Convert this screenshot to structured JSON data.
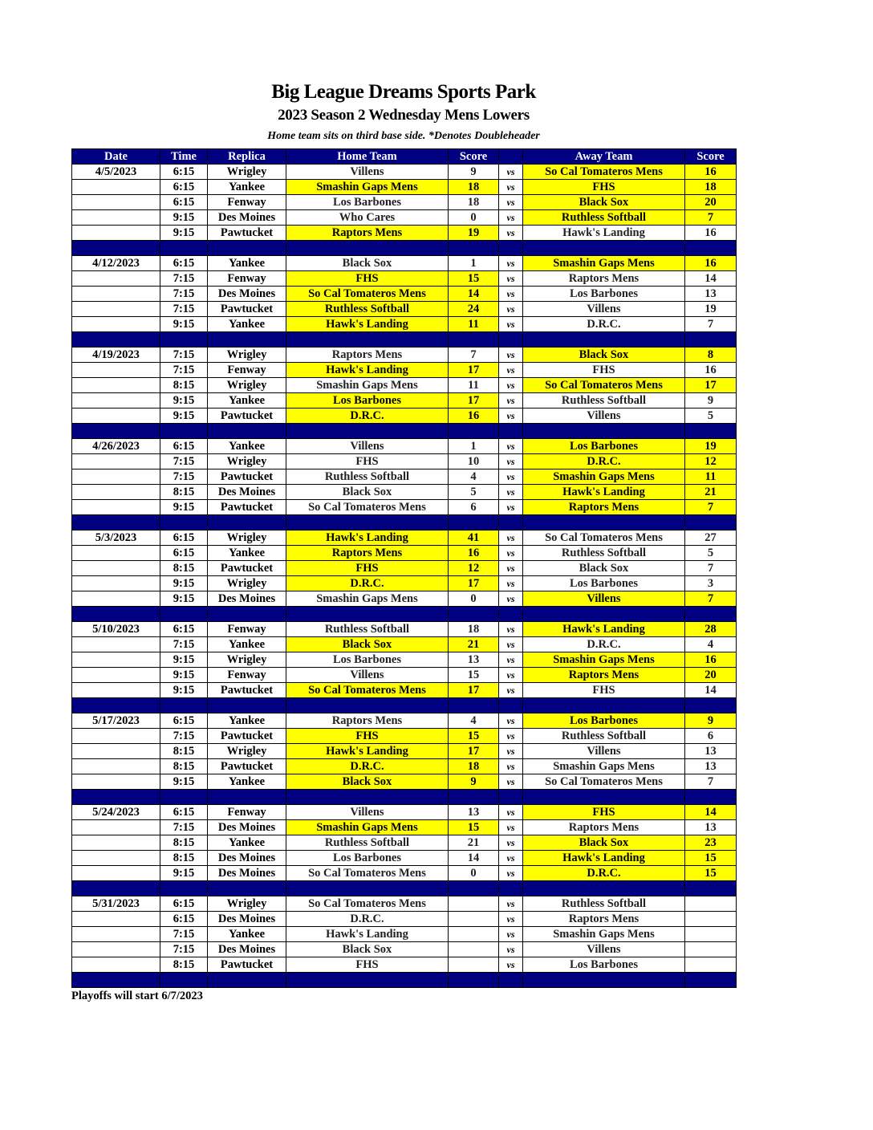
{
  "header": {
    "title": "Big League Dreams Sports Park",
    "subtitle": "2023 Season 2 Wednesday Mens Lowers",
    "note": "Home team sits on third base side.  *Denotes Doubleheader"
  },
  "colors": {
    "header_bg": "#000080",
    "winner_highlight": "#ffff00"
  },
  "columns": [
    "Date",
    "Time",
    "Replica",
    "Home Team",
    "Score",
    "",
    "Away Team",
    "Score"
  ],
  "vs_label": "vs",
  "weeks": [
    {
      "date": "4/5/2023",
      "games": [
        {
          "time": "6:15",
          "field": "Wrigley",
          "home": "Villens",
          "home_score": "9",
          "away": "So Cal Tomateros Mens",
          "away_score": "16",
          "winner": "away"
        },
        {
          "time": "6:15",
          "field": "Yankee",
          "home": "Smashin Gaps Mens",
          "home_score": "18",
          "away": "FHS",
          "away_score": "18",
          "winner": "both"
        },
        {
          "time": "6:15",
          "field": "Fenway",
          "home": "Los Barbones",
          "home_score": "18",
          "away": "Black Sox",
          "away_score": "20",
          "winner": "away"
        },
        {
          "time": "9:15",
          "field": "Des Moines",
          "home": "Who Cares",
          "home_score": "0",
          "away": "Ruthless Softball",
          "away_score": "7",
          "winner": "away"
        },
        {
          "time": "9:15",
          "field": "Pawtucket",
          "home": "Raptors Mens",
          "home_score": "19",
          "away": "Hawk's Landing",
          "away_score": "16",
          "winner": "home"
        }
      ]
    },
    {
      "date": "4/12/2023",
      "games": [
        {
          "time": "6:15",
          "field": "Yankee",
          "home": "Black Sox",
          "home_score": "1",
          "away": "Smashin Gaps Mens",
          "away_score": "16",
          "winner": "away"
        },
        {
          "time": "7:15",
          "field": "Fenway",
          "home": "FHS",
          "home_score": "15",
          "away": "Raptors Mens",
          "away_score": "14",
          "winner": "home"
        },
        {
          "time": "7:15",
          "field": "Des Moines",
          "home": "So Cal Tomateros Mens",
          "home_score": "14",
          "away": "Los Barbones",
          "away_score": "13",
          "winner": "home"
        },
        {
          "time": "7:15",
          "field": "Pawtucket",
          "home": "Ruthless Softball",
          "home_score": "24",
          "away": "Villens",
          "away_score": "19",
          "winner": "home"
        },
        {
          "time": "9:15",
          "field": "Yankee",
          "home": "Hawk's Landing",
          "home_score": "11",
          "away": "D.R.C.",
          "away_score": "7",
          "winner": "home"
        }
      ]
    },
    {
      "date": "4/19/2023",
      "games": [
        {
          "time": "7:15",
          "field": "Wrigley",
          "home": "Raptors Mens",
          "home_score": "7",
          "away": "Black Sox",
          "away_score": "8",
          "winner": "away"
        },
        {
          "time": "7:15",
          "field": "Fenway",
          "home": "Hawk's Landing",
          "home_score": "17",
          "away": "FHS",
          "away_score": "16",
          "winner": "home"
        },
        {
          "time": "8:15",
          "field": "Wrigley",
          "home": "Smashin Gaps Mens",
          "home_score": "11",
          "away": "So Cal Tomateros Mens",
          "away_score": "17",
          "winner": "away"
        },
        {
          "time": "9:15",
          "field": "Yankee",
          "home": "Los Barbones",
          "home_score": "17",
          "away": "Ruthless Softball",
          "away_score": "9",
          "winner": "home"
        },
        {
          "time": "9:15",
          "field": "Pawtucket",
          "home": "D.R.C.",
          "home_score": "16",
          "away": "Villens",
          "away_score": "5",
          "winner": "home"
        }
      ]
    },
    {
      "date": "4/26/2023",
      "games": [
        {
          "time": "6:15",
          "field": "Yankee",
          "home": "Villens",
          "home_score": "1",
          "away": "Los Barbones",
          "away_score": "19",
          "winner": "away"
        },
        {
          "time": "7:15",
          "field": "Wrigley",
          "home": "FHS",
          "home_score": "10",
          "away": "D.R.C.",
          "away_score": "12",
          "winner": "away"
        },
        {
          "time": "7:15",
          "field": "Pawtucket",
          "home": "Ruthless Softball",
          "home_score": "4",
          "away": "Smashin Gaps Mens",
          "away_score": "11",
          "winner": "away"
        },
        {
          "time": "8:15",
          "field": "Des Moines",
          "home": "Black Sox",
          "home_score": "5",
          "away": "Hawk's Landing",
          "away_score": "21",
          "winner": "away"
        },
        {
          "time": "9:15",
          "field": "Pawtucket",
          "home": "So Cal Tomateros Mens",
          "home_score": "6",
          "away": "Raptors Mens",
          "away_score": "7",
          "winner": "away"
        }
      ]
    },
    {
      "date": "5/3/2023",
      "games": [
        {
          "time": "6:15",
          "field": "Wrigley",
          "home": "Hawk's Landing",
          "home_score": "41",
          "away": "So Cal Tomateros Mens",
          "away_score": "27",
          "winner": "home"
        },
        {
          "time": "6:15",
          "field": "Yankee",
          "home": "Raptors Mens",
          "home_score": "16",
          "away": "Ruthless Softball",
          "away_score": "5",
          "winner": "home"
        },
        {
          "time": "8:15",
          "field": "Pawtucket",
          "home": "FHS",
          "home_score": "12",
          "away": "Black Sox",
          "away_score": "7",
          "winner": "home"
        },
        {
          "time": "9:15",
          "field": "Wrigley",
          "home": "D.R.C.",
          "home_score": "17",
          "away": "Los Barbones",
          "away_score": "3",
          "winner": "home"
        },
        {
          "time": "9:15",
          "field": "Des Moines",
          "home": "Smashin Gaps Mens",
          "home_score": "0",
          "away": "Villens",
          "away_score": "7",
          "winner": "away"
        }
      ]
    },
    {
      "date": "5/10/2023",
      "games": [
        {
          "time": "6:15",
          "field": "Fenway",
          "home": "Ruthless Softball",
          "home_score": "18",
          "away": "Hawk's Landing",
          "away_score": "28",
          "winner": "away"
        },
        {
          "time": "7:15",
          "field": "Yankee",
          "home": "Black Sox",
          "home_score": "21",
          "away": "D.R.C.",
          "away_score": "4",
          "winner": "home"
        },
        {
          "time": "9:15",
          "field": "Wrigley",
          "home": "Los Barbones",
          "home_score": "13",
          "away": "Smashin Gaps Mens",
          "away_score": "16",
          "winner": "away"
        },
        {
          "time": "9:15",
          "field": "Fenway",
          "home": "Villens",
          "home_score": "15",
          "away": "Raptors Mens",
          "away_score": "20",
          "winner": "away"
        },
        {
          "time": "9:15",
          "field": "Pawtucket",
          "home": "So Cal Tomateros Mens",
          "home_score": "17",
          "away": "FHS",
          "away_score": "14",
          "winner": "home"
        }
      ]
    },
    {
      "date": "5/17/2023",
      "games": [
        {
          "time": "6:15",
          "field": "Yankee",
          "home": "Raptors Mens",
          "home_score": "4",
          "away": "Los Barbones",
          "away_score": "9",
          "winner": "away"
        },
        {
          "time": "7:15",
          "field": "Pawtucket",
          "home": "FHS",
          "home_score": "15",
          "away": "Ruthless Softball",
          "away_score": "6",
          "winner": "home"
        },
        {
          "time": "8:15",
          "field": "Wrigley",
          "home": "Hawk's Landing",
          "home_score": "17",
          "away": "Villens",
          "away_score": "13",
          "winner": "home"
        },
        {
          "time": "8:15",
          "field": "Pawtucket",
          "home": "D.R.C.",
          "home_score": "18",
          "away": "Smashin Gaps Mens",
          "away_score": "13",
          "winner": "home"
        },
        {
          "time": "9:15",
          "field": "Yankee",
          "home": "Black Sox",
          "home_score": "9",
          "away": "So Cal Tomateros Mens",
          "away_score": "7",
          "winner": "home"
        }
      ]
    },
    {
      "date": "5/24/2023",
      "games": [
        {
          "time": "6:15",
          "field": "Fenway",
          "home": "Villens",
          "home_score": "13",
          "away": "FHS",
          "away_score": "14",
          "winner": "away"
        },
        {
          "time": "7:15",
          "field": "Des Moines",
          "home": "Smashin Gaps Mens",
          "home_score": "15",
          "away": "Raptors Mens",
          "away_score": "13",
          "winner": "home"
        },
        {
          "time": "8:15",
          "field": "Yankee",
          "home": "Ruthless Softball",
          "home_score": "21",
          "away": "Black Sox",
          "away_score": "23",
          "winner": "away"
        },
        {
          "time": "8:15",
          "field": "Des Moines",
          "home": "Los Barbones",
          "home_score": "14",
          "away": "Hawk's Landing",
          "away_score": "15",
          "winner": "away"
        },
        {
          "time": "9:15",
          "field": "Des Moines",
          "home": "So Cal Tomateros Mens",
          "home_score": "0",
          "away": "D.R.C.",
          "away_score": "15",
          "winner": "away"
        }
      ]
    },
    {
      "date": "5/31/2023",
      "games": [
        {
          "time": "6:15",
          "field": "Wrigley",
          "home": "So Cal Tomateros Mens",
          "home_score": "",
          "away": "Ruthless Softball",
          "away_score": "",
          "winner": "none"
        },
        {
          "time": "6:15",
          "field": "Des Moines",
          "home": "D.R.C.",
          "home_score": "",
          "away": "Raptors Mens",
          "away_score": "",
          "winner": "none"
        },
        {
          "time": "7:15",
          "field": "Yankee",
          "home": "Hawk's Landing",
          "home_score": "",
          "away": "Smashin Gaps Mens",
          "away_score": "",
          "winner": "none"
        },
        {
          "time": "7:15",
          "field": "Des Moines",
          "home": "Black Sox",
          "home_score": "",
          "away": "Villens",
          "away_score": "",
          "winner": "none"
        },
        {
          "time": "8:15",
          "field": "Pawtucket",
          "home": "FHS",
          "home_score": "",
          "away": "Los Barbones",
          "away_score": "",
          "winner": "none"
        }
      ]
    }
  ],
  "footer": "Playoffs will start 6/7/2023"
}
